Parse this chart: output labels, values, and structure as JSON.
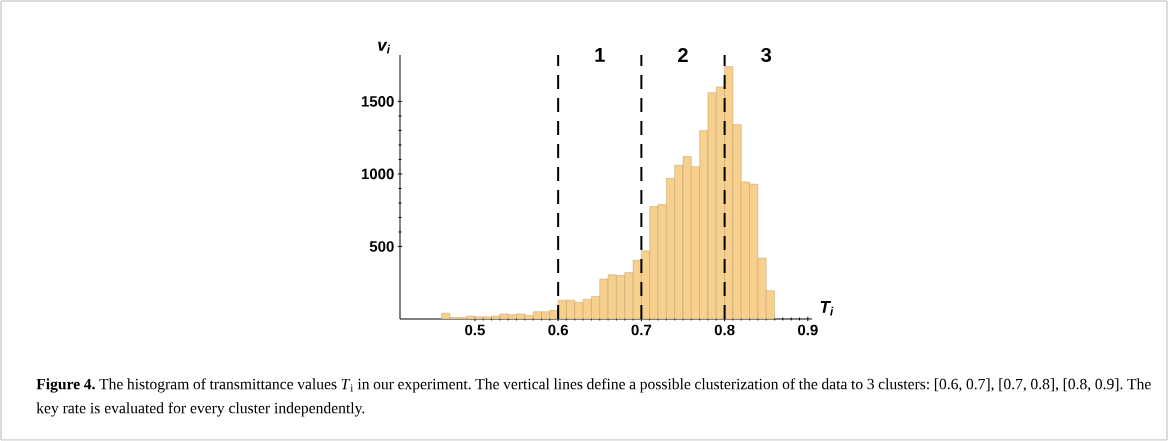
{
  "chart_data": {
    "type": "histogram",
    "xlabel": "T$_{i}$",
    "ylabel": "v$_{i}$",
    "bins": [
      0.46,
      0.47,
      0.48,
      0.49,
      0.5,
      0.51,
      0.52,
      0.53,
      0.54,
      0.55,
      0.56,
      0.57,
      0.58,
      0.59,
      0.6,
      0.61,
      0.62,
      0.63,
      0.64,
      0.65,
      0.66,
      0.67,
      0.68,
      0.69,
      0.7,
      0.71,
      0.72,
      0.73,
      0.74,
      0.75,
      0.76,
      0.77,
      0.78,
      0.79,
      0.8,
      0.81,
      0.82,
      0.83,
      0.84,
      0.85,
      0.86
    ],
    "values": [
      40,
      10,
      10,
      20,
      15,
      15,
      20,
      35,
      30,
      35,
      25,
      50,
      50,
      60,
      130,
      130,
      115,
      135,
      155,
      275,
      305,
      300,
      320,
      405,
      470,
      775,
      790,
      970,
      1060,
      1120,
      1050,
      1300,
      1560,
      1600,
      1740,
      1340,
      945,
      930,
      420,
      195
    ],
    "color": "#f8d08e",
    "xlim": [
      0.41,
      0.905
    ],
    "ylim": [
      0,
      1820
    ],
    "xticks": [
      0.5,
      0.6,
      0.7,
      0.8,
      0.9
    ],
    "yticks": [
      500,
      1000,
      1500
    ],
    "grid": false,
    "ref_lines": [
      {
        "axis": "x",
        "value": 0.6,
        "color": "#000000",
        "line_style": "dashed"
      },
      {
        "axis": "x",
        "value": 0.7,
        "color": "#000000",
        "line_style": "dashed"
      },
      {
        "axis": "x",
        "value": 0.8,
        "color": "#000000",
        "line_style": "dashed"
      }
    ],
    "annotations": [
      "1",
      "2",
      "3",
      "**Figure 4.** The histogram of transmittance values *T*$_{i}$ in our experiment. The vertical lines define a possible clusterization of the data to 3 clusters: [0.6, 0.7], [0.7, 0.8], [0.8, 0.9]. The key rate is evaluated for every cluster independently."
    ]
  }
}
